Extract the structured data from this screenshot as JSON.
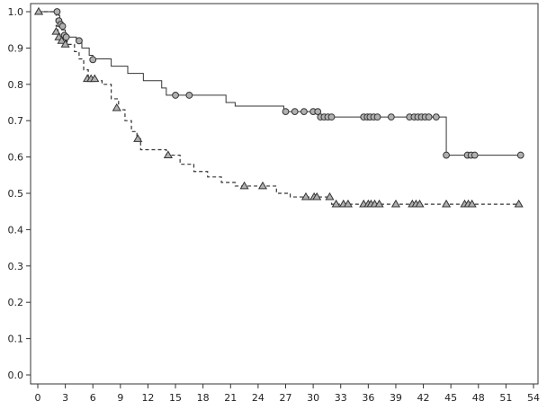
{
  "chart_data": {
    "type": "line",
    "title": "",
    "xlabel": "",
    "ylabel": "",
    "xlim": [
      0,
      54
    ],
    "ylim": [
      0,
      1.0
    ],
    "x_ticks": [
      "0",
      "3",
      "6",
      "9",
      "12",
      "15",
      "18",
      "21",
      "24",
      "27",
      "30",
      "33",
      "36",
      "39",
      "42",
      "45",
      "48",
      "51",
      "54"
    ],
    "y_ticks": [
      "0.0",
      "0.1",
      "0.2",
      "0.3",
      "0.4",
      "0.5",
      "0.6",
      "0.7",
      "0.8",
      "0.9",
      "1.0"
    ],
    "grid": false,
    "series": [
      {
        "style": "solid",
        "marker": "circle",
        "steps": [
          [
            0,
            1.0
          ],
          [
            2.2,
            0.99
          ],
          [
            2.4,
            0.97
          ],
          [
            2.6,
            0.95
          ],
          [
            3.0,
            0.93
          ],
          [
            4.2,
            0.92
          ],
          [
            4.8,
            0.9
          ],
          [
            5.6,
            0.88
          ],
          [
            6.0,
            0.87
          ],
          [
            8.0,
            0.85
          ],
          [
            9.8,
            0.83
          ],
          [
            11.5,
            0.81
          ],
          [
            13.5,
            0.79
          ],
          [
            14.0,
            0.77
          ],
          [
            20.5,
            0.75
          ],
          [
            21.5,
            0.74
          ],
          [
            26.8,
            0.725
          ],
          [
            30.6,
            0.71
          ],
          [
            44.5,
            0.605
          ],
          [
            52.5,
            0.605
          ]
        ],
        "censored": [
          [
            2.1,
            1.0
          ],
          [
            2.3,
            0.975
          ],
          [
            2.5,
            0.965
          ],
          [
            2.7,
            0.96
          ],
          [
            2.9,
            0.935
          ],
          [
            3.1,
            0.93
          ],
          [
            4.5,
            0.92
          ],
          [
            6.0,
            0.868
          ],
          [
            15.0,
            0.77
          ],
          [
            16.5,
            0.77
          ],
          [
            27.0,
            0.725
          ],
          [
            28.0,
            0.725
          ],
          [
            29.0,
            0.725
          ],
          [
            30.0,
            0.725
          ],
          [
            30.5,
            0.725
          ],
          [
            30.8,
            0.71
          ],
          [
            31.2,
            0.71
          ],
          [
            31.6,
            0.71
          ],
          [
            32.0,
            0.71
          ],
          [
            35.5,
            0.71
          ],
          [
            35.9,
            0.71
          ],
          [
            36.2,
            0.71
          ],
          [
            36.6,
            0.71
          ],
          [
            37.0,
            0.71
          ],
          [
            38.5,
            0.71
          ],
          [
            40.5,
            0.71
          ],
          [
            41.0,
            0.71
          ],
          [
            41.4,
            0.71
          ],
          [
            41.8,
            0.71
          ],
          [
            42.2,
            0.71
          ],
          [
            42.6,
            0.71
          ],
          [
            43.4,
            0.71
          ],
          [
            44.5,
            0.605
          ],
          [
            46.8,
            0.605
          ],
          [
            47.2,
            0.605
          ],
          [
            47.6,
            0.605
          ],
          [
            52.6,
            0.605
          ]
        ]
      },
      {
        "style": "dashed",
        "marker": "triangle",
        "steps": [
          [
            0,
            1.0
          ],
          [
            2.0,
            0.96
          ],
          [
            2.2,
            0.94
          ],
          [
            2.4,
            0.93
          ],
          [
            2.8,
            0.92
          ],
          [
            3.2,
            0.91
          ],
          [
            4.0,
            0.89
          ],
          [
            4.5,
            0.87
          ],
          [
            5.0,
            0.84
          ],
          [
            5.5,
            0.81
          ],
          [
            7.0,
            0.8
          ],
          [
            8.0,
            0.76
          ],
          [
            8.8,
            0.73
          ],
          [
            9.5,
            0.7
          ],
          [
            10.2,
            0.67
          ],
          [
            10.8,
            0.65
          ],
          [
            11.2,
            0.62
          ],
          [
            14.0,
            0.605
          ],
          [
            15.5,
            0.58
          ],
          [
            17.0,
            0.56
          ],
          [
            18.5,
            0.545
          ],
          [
            20.0,
            0.53
          ],
          [
            21.5,
            0.52
          ],
          [
            26.0,
            0.5
          ],
          [
            27.5,
            0.49
          ],
          [
            32.0,
            0.47
          ],
          [
            52.5,
            0.47
          ]
        ],
        "censored": [
          [
            0.1,
            1.0
          ],
          [
            2.0,
            0.945
          ],
          [
            2.3,
            0.93
          ],
          [
            2.6,
            0.92
          ],
          [
            3.0,
            0.91
          ],
          [
            5.4,
            0.815
          ],
          [
            5.8,
            0.815
          ],
          [
            6.2,
            0.815
          ],
          [
            8.6,
            0.735
          ],
          [
            10.9,
            0.65
          ],
          [
            14.2,
            0.605
          ],
          [
            22.5,
            0.52
          ],
          [
            24.5,
            0.52
          ],
          [
            29.2,
            0.49
          ],
          [
            30.1,
            0.49
          ],
          [
            30.4,
            0.49
          ],
          [
            31.8,
            0.49
          ],
          [
            32.5,
            0.47
          ],
          [
            33.3,
            0.47
          ],
          [
            33.8,
            0.47
          ],
          [
            35.5,
            0.47
          ],
          [
            36.0,
            0.47
          ],
          [
            36.3,
            0.47
          ],
          [
            36.7,
            0.47
          ],
          [
            37.2,
            0.47
          ],
          [
            39.0,
            0.47
          ],
          [
            40.8,
            0.47
          ],
          [
            41.2,
            0.47
          ],
          [
            41.6,
            0.47
          ],
          [
            44.5,
            0.47
          ],
          [
            46.5,
            0.47
          ],
          [
            46.9,
            0.47
          ],
          [
            47.3,
            0.47
          ],
          [
            52.4,
            0.47
          ]
        ]
      }
    ]
  }
}
